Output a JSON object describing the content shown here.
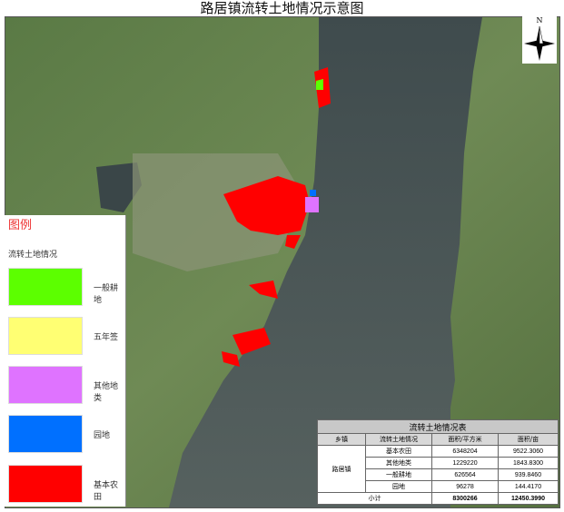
{
  "title": "路居镇流转土地情况示意图",
  "north_label": "N",
  "legend": {
    "title": "图例",
    "subtitle": "流转土地情况",
    "items": [
      {
        "label": "一般耕地",
        "color": "#5cff00"
      },
      {
        "label": "五年签",
        "color": "#ffff73"
      },
      {
        "label": "其他地类",
        "color": "#df73ff"
      },
      {
        "label": "园地",
        "color": "#0070ff"
      },
      {
        "label": "基本农田",
        "color": "#ff0000"
      }
    ]
  },
  "table": {
    "caption": "流转土地情况表",
    "headers": [
      "乡镇",
      "流转土地情况",
      "面积/平方米",
      "面积/亩"
    ],
    "town": "路居镇",
    "rows": [
      [
        "基本农田",
        "6348204",
        "9522.3060"
      ],
      [
        "其他地类",
        "1229220",
        "1843.8300"
      ],
      [
        "一般耕地",
        "626564",
        "939.8460"
      ],
      [
        "园地",
        "96278",
        "144.4170"
      ]
    ],
    "total": {
      "label": "小计",
      "sqm": "8300266",
      "mu": "12450.3990"
    }
  },
  "colors": {
    "land": "#4f6b3a",
    "water": "#4a5658",
    "farmland": "#ff0000"
  }
}
